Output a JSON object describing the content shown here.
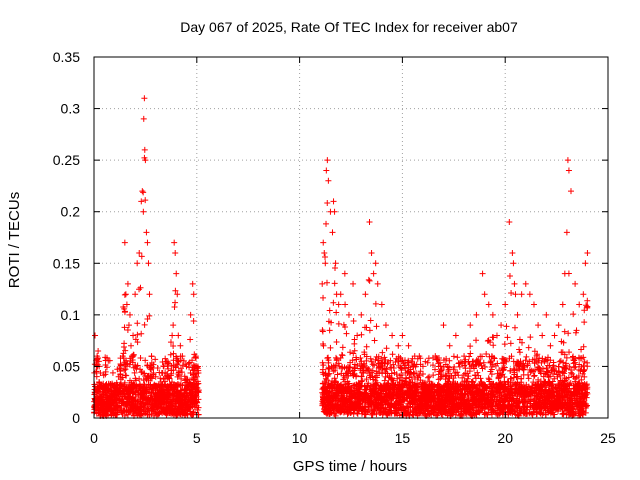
{
  "chart_data": {
    "type": "scatter",
    "title": "Day 067 of 2025, Rate Of TEC Index for receiver ab07",
    "xlabel": "GPS time / hours",
    "ylabel": "ROTI / TECUs",
    "xlim": [
      0,
      25
    ],
    "ylim": [
      0,
      0.35
    ],
    "x_ticks": [
      0,
      5,
      10,
      15,
      20,
      25
    ],
    "y_ticks": [
      0,
      0.05,
      0.1,
      0.15,
      0.2,
      0.25,
      0.3,
      0.35
    ],
    "x_tick_labels": [
      "0",
      "5",
      "10",
      "15",
      "20",
      "25"
    ],
    "y_tick_labels": [
      "0",
      "0.05",
      "0.1",
      "0.15",
      "0.2",
      "0.25",
      "0.3",
      "0.35"
    ],
    "grid": true,
    "marker": "plus",
    "color": "#ff0000",
    "series": [
      {
        "name": "ROTI",
        "description": "dense + markers, two observation windows; data gap between ~5.1 h and ~11.1 h",
        "x": [
          0.05,
          0.1,
          0.15,
          0.2,
          0.25,
          0.3,
          0.35,
          0.4,
          0.1,
          0.2,
          0.3,
          0.8,
          1.0,
          1.2,
          1.4,
          1.5,
          1.55,
          1.6,
          1.65,
          1.7,
          1.75,
          1.8,
          1.85,
          1.9,
          2.0,
          2.1,
          2.2,
          2.3,
          2.35,
          2.4,
          2.42,
          2.45,
          2.47,
          2.5,
          2.55,
          2.6,
          2.65,
          2.7,
          2.8,
          3.0,
          3.2,
          3.4,
          3.6,
          3.8,
          3.85,
          3.9,
          3.95,
          4.0,
          4.05,
          4.1,
          4.2,
          4.3,
          4.5,
          4.7,
          4.8,
          4.85,
          4.9,
          4.95,
          5.0,
          11.1,
          11.15,
          11.2,
          11.25,
          11.3,
          11.35,
          11.4,
          11.5,
          11.6,
          11.65,
          11.7,
          11.75,
          11.8,
          11.9,
          12.0,
          12.2,
          12.4,
          12.6,
          12.8,
          13.0,
          13.2,
          13.4,
          13.5,
          13.6,
          13.7,
          13.8,
          14.0,
          14.2,
          14.5,
          14.8,
          15.0,
          15.3,
          15.6,
          16.0,
          16.3,
          16.6,
          17.0,
          17.3,
          17.6,
          18.0,
          18.3,
          18.6,
          18.9,
          19.0,
          19.2,
          19.4,
          19.6,
          19.8,
          20.0,
          20.2,
          20.35,
          20.4,
          20.45,
          20.5,
          20.6,
          20.8,
          21.0,
          21.2,
          21.4,
          21.6,
          21.8,
          22.0,
          22.2,
          22.4,
          22.6,
          22.8,
          22.9,
          23.0,
          23.05,
          23.1,
          23.2,
          23.4,
          23.6,
          23.8,
          23.9,
          24.0
        ],
        "y": [
          0.08,
          0.045,
          0.06,
          0.065,
          0.05,
          0.03,
          0.02,
          0.015,
          0.01,
          0.012,
          0.008,
          0.02,
          0.03,
          0.04,
          0.06,
          0.17,
          0.12,
          0.11,
          0.13,
          0.09,
          0.1,
          0.07,
          0.06,
          0.08,
          0.12,
          0.15,
          0.16,
          0.21,
          0.22,
          0.2,
          0.29,
          0.31,
          0.26,
          0.25,
          0.18,
          0.17,
          0.15,
          0.12,
          0.06,
          0.04,
          0.03,
          0.05,
          0.04,
          0.08,
          0.09,
          0.17,
          0.16,
          0.14,
          0.12,
          0.08,
          0.07,
          0.06,
          0.05,
          0.1,
          0.13,
          0.12,
          0.05,
          0.06,
          0.04,
          0.13,
          0.17,
          0.16,
          0.15,
          0.24,
          0.25,
          0.23,
          0.2,
          0.18,
          0.21,
          0.2,
          0.15,
          0.12,
          0.11,
          0.12,
          0.14,
          0.1,
          0.13,
          0.08,
          0.1,
          0.12,
          0.19,
          0.16,
          0.14,
          0.15,
          0.13,
          0.11,
          0.09,
          0.08,
          0.07,
          0.08,
          0.07,
          0.06,
          0.05,
          0.04,
          0.06,
          0.09,
          0.07,
          0.08,
          0.06,
          0.09,
          0.1,
          0.14,
          0.12,
          0.11,
          0.1,
          0.08,
          0.09,
          0.11,
          0.19,
          0.16,
          0.15,
          0.13,
          0.12,
          0.1,
          0.12,
          0.13,
          0.12,
          0.11,
          0.09,
          0.08,
          0.1,
          0.07,
          0.08,
          0.09,
          0.11,
          0.14,
          0.18,
          0.25,
          0.24,
          0.22,
          0.13,
          0.11,
          0.12,
          0.15,
          0.16
        ]
      }
    ],
    "noise_floor": "dense markers between 0 and ~0.05 over 0–5.1 h and 11.1–24 h"
  }
}
